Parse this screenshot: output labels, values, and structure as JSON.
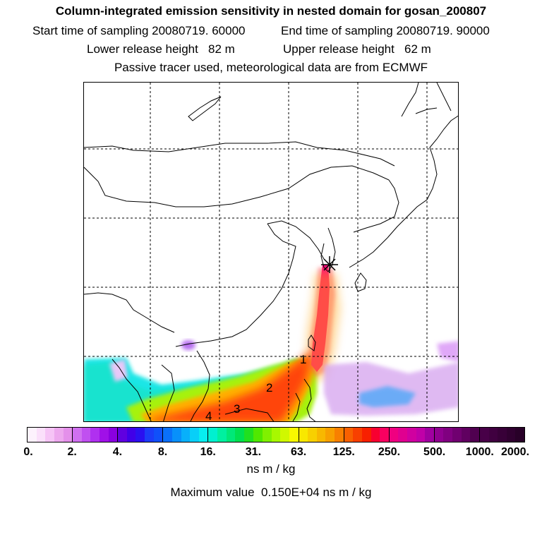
{
  "header": {
    "title": "Column-integrated emission sensitivity in nested domain for gosan_200807",
    "start_label": "Start time of sampling 20080719. 60000",
    "end_label": "End time of sampling 20080719. 90000",
    "lower_label": "Lower release height   82 m",
    "upper_label": "Upper release height   62 m",
    "info": "Passive tracer used, meteorological data are from ECMWF"
  },
  "map": {
    "day_labels": [
      "1",
      "2",
      "3",
      "4"
    ],
    "release_marker": "star-icon"
  },
  "colorbar": {
    "ticks": [
      "0.",
      "2.",
      "4.",
      "8.",
      "16.",
      "31.",
      "63.",
      "125.",
      "250.",
      "500.",
      "1000.",
      "2000."
    ],
    "segment_colors": [
      [
        "#fdf2fd",
        "#fbe0fb",
        "#f6c4f6",
        "#eda8ee",
        "#e490ea"
      ],
      [
        "#d070f0",
        "#c050f0",
        "#b030f0",
        "#a010e8",
        "#8a00e0"
      ],
      [
        "#6000e0",
        "#4000e8",
        "#2a10f0",
        "#1c3cf8",
        "#1050fa"
      ],
      [
        "#0a70fa",
        "#0890fa",
        "#08b0fa",
        "#08cff8",
        "#08eef0"
      ],
      [
        "#00f0d0",
        "#00f0a0",
        "#00e878",
        "#00e050",
        "#20e020"
      ],
      [
        "#50e800",
        "#80f000",
        "#a8f800",
        "#d0f800",
        "#f8f800"
      ],
      [
        "#f8e800",
        "#f8d000",
        "#f8b800",
        "#f8a000",
        "#f88000"
      ],
      [
        "#f86000",
        "#f84000",
        "#f82000",
        "#f80030",
        "#f80060"
      ],
      [
        "#f00080",
        "#e00090",
        "#d000a0",
        "#c000a8",
        "#a000a0"
      ],
      [
        "#900090",
        "#800080",
        "#700070",
        "#600060",
        "#500050"
      ],
      [
        "#480048",
        "#400040",
        "#380038",
        "#300030",
        "#280028"
      ]
    ],
    "units": "ns m / kg",
    "max_label": "Maximum value  0.150E+04 ns m / kg"
  }
}
